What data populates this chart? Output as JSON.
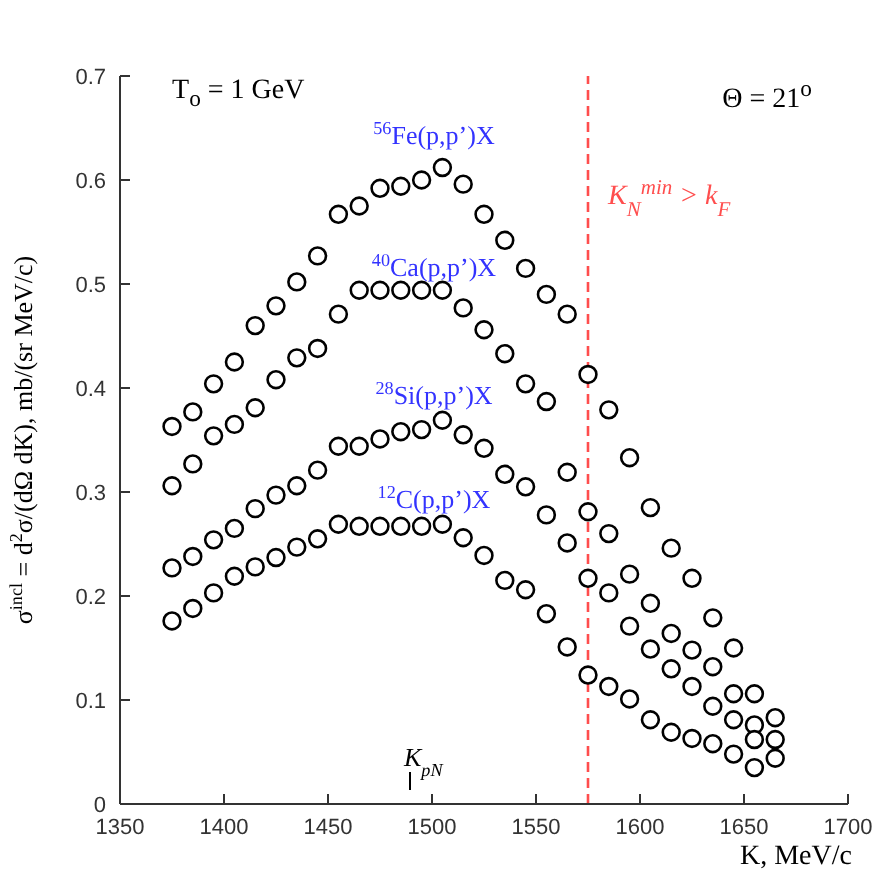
{
  "chart_data": {
    "type": "scatter",
    "xlabel": "K, MeV/c",
    "ylabel": "σ$^{incl}$ = d$^{2}$σ/(dΩ dK), mb/(sr MeV/c)",
    "x": [
      1375,
      1385,
      1395,
      1405,
      1415,
      1425,
      1435,
      1445,
      1455,
      1465,
      1475,
      1485,
      1495,
      1505,
      1515,
      1525,
      1535,
      1545,
      1555,
      1565,
      1575,
      1585,
      1595,
      1605,
      1615,
      1625,
      1635,
      1645,
      1655,
      1665
    ],
    "series": [
      {
        "name": "$^{56}$Fe(p,p’)X",
        "color": "#000000",
        "values": [
          0.363,
          0.377,
          0.404,
          0.425,
          0.46,
          0.479,
          0.502,
          0.527,
          0.567,
          0.575,
          0.592,
          0.594,
          0.6,
          0.612,
          0.596,
          0.567,
          0.542,
          0.515,
          0.49,
          0.471,
          0.413,
          0.379,
          0.333,
          0.285,
          0.246,
          0.217,
          0.179,
          0.15,
          0.106,
          0.083
        ]
      },
      {
        "name": "$^{40}$Ca(p,p’)X",
        "color": "#000000",
        "values": [
          0.306,
          0.327,
          0.354,
          0.365,
          0.381,
          0.408,
          0.429,
          0.438,
          0.471,
          0.494,
          0.494,
          0.494,
          0.494,
          0.494,
          0.477,
          0.456,
          0.433,
          0.404,
          0.387,
          0.319,
          0.281,
          0.26,
          0.221,
          0.193,
          0.164,
          0.148,
          0.132,
          0.106,
          0.076,
          0.062
        ]
      },
      {
        "name": "$^{28}$Si(p,p’)X",
        "color": "#000000",
        "values": [
          0.227,
          0.238,
          0.254,
          0.265,
          0.284,
          0.297,
          0.306,
          0.321,
          0.344,
          0.344,
          0.351,
          0.358,
          0.36,
          0.369,
          0.355,
          0.342,
          0.317,
          0.305,
          0.278,
          0.251,
          0.217,
          0.203,
          0.171,
          0.149,
          0.13,
          0.113,
          0.094,
          0.081,
          0.062,
          0.044
        ]
      },
      {
        "name": "$^{12}$C(p,p’)X",
        "color": "#000000",
        "values": [
          0.176,
          0.188,
          0.203,
          0.219,
          0.228,
          0.237,
          0.247,
          0.255,
          0.269,
          0.267,
          0.267,
          0.267,
          0.267,
          0.269,
          0.256,
          0.239,
          0.215,
          0.206,
          0.183,
          0.151,
          0.124,
          0.113,
          0.101,
          0.081,
          0.069,
          0.063,
          0.058,
          0.048,
          0.035,
          null
        ]
      }
    ],
    "xlim": [
      1350,
      1700
    ],
    "xticks": [
      1350,
      1400,
      1450,
      1500,
      1550,
      1600,
      1650,
      1700
    ],
    "ylim": [
      0,
      0.7
    ],
    "yticks": [
      0,
      0.1,
      0.2,
      0.3,
      0.4,
      0.5,
      0.6,
      0.7
    ],
    "ref_lines": [
      {
        "axis": "x",
        "value": 1575,
        "label": "K$_{N}$$^{min}$ > k$_{F}$",
        "color": "#ff4d4d",
        "line_style": "dashed"
      }
    ],
    "annotations": [
      "T$_{o}$ = 1 GeV",
      "Θ = 21$^{o}$",
      "K$_{pN}$"
    ],
    "grid": false,
    "legend": false,
    "marker": "circle"
  }
}
